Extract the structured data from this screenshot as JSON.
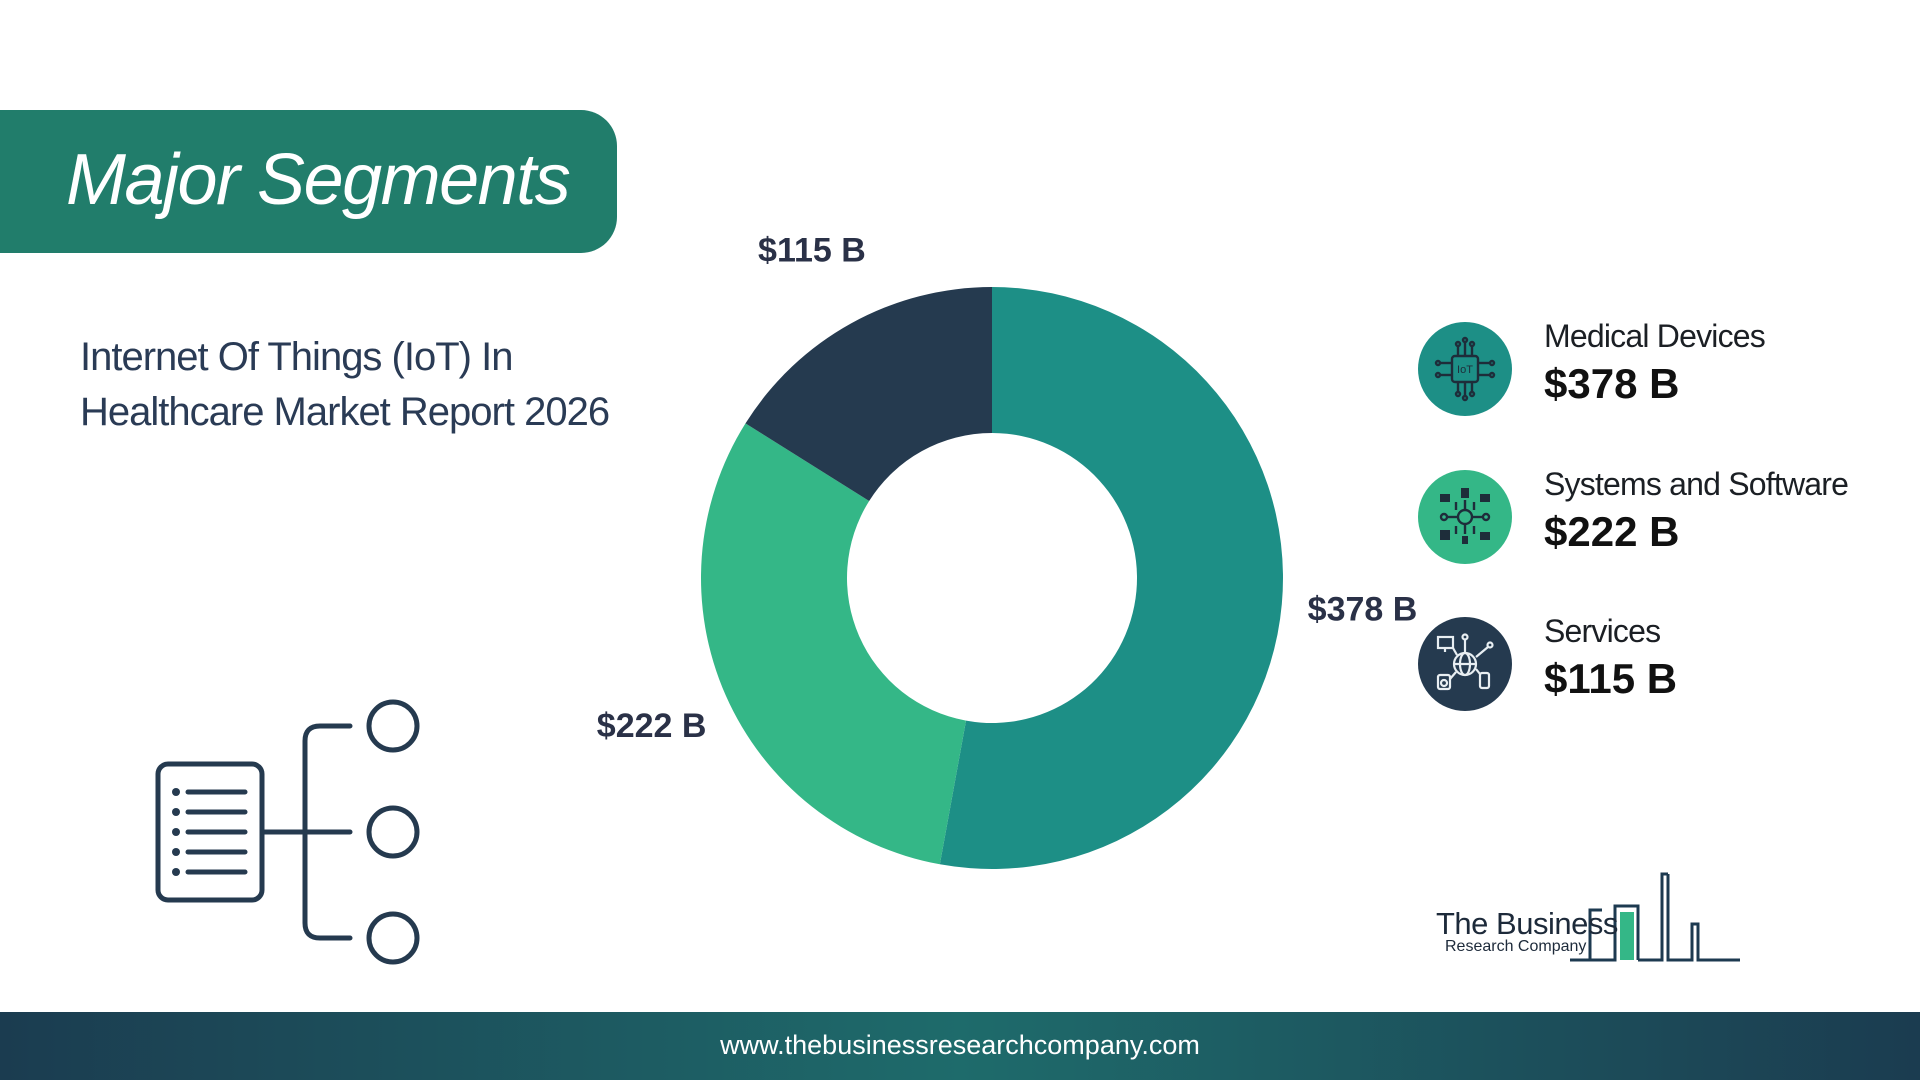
{
  "header": {
    "title": "Major Segments"
  },
  "report": {
    "title": "Internet Of Things (IoT) In Healthcare Market Report 2026"
  },
  "colors": {
    "medical_devices": "#1d8f86",
    "systems_software": "#34b787",
    "services": "#253a4f",
    "banner": "#217d6b"
  },
  "chart_data": {
    "type": "pie",
    "donut": true,
    "categories": [
      "Medical Devices",
      "Systems and Software",
      "Services"
    ],
    "values": [
      378,
      222,
      115
    ],
    "unit": "$ B",
    "data_labels": [
      "$378 B",
      "$222 B",
      "$115 B"
    ],
    "colors": [
      "#1d8f86",
      "#34b787",
      "#253a4f"
    ],
    "legend_position": "right"
  },
  "legend": [
    {
      "name": "Medical Devices",
      "value": "$378 B",
      "icon": "iot-chip-icon"
    },
    {
      "name": "Systems and Software",
      "value": "$222 B",
      "icon": "network-system-icon"
    },
    {
      "name": "Services",
      "value": "$115 B",
      "icon": "globe-devices-icon"
    }
  ],
  "logo": {
    "line1": "The Business",
    "line2": "Research Company"
  },
  "footer": {
    "url": "www.thebusinessresearchcompany.com"
  }
}
